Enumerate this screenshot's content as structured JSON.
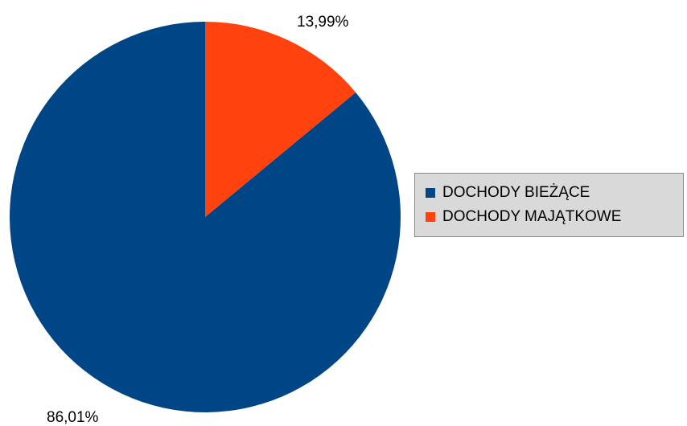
{
  "chart_data": {
    "type": "pie",
    "title": "",
    "slices": [
      {
        "label": "DOCHODY BIEŻĄCE",
        "value": 86.01,
        "value_label": "86,01%",
        "color": "#004586"
      },
      {
        "label": "DOCHODY MAJĄTKOWE",
        "value": 13.99,
        "value_label": "13,99%",
        "color": "#ff420e"
      }
    ],
    "start_angle": "12 o'clock",
    "direction": "clockwise",
    "legend": {
      "placement": "right",
      "background": "#d9d9d9",
      "border": "#8a8a8a"
    }
  }
}
